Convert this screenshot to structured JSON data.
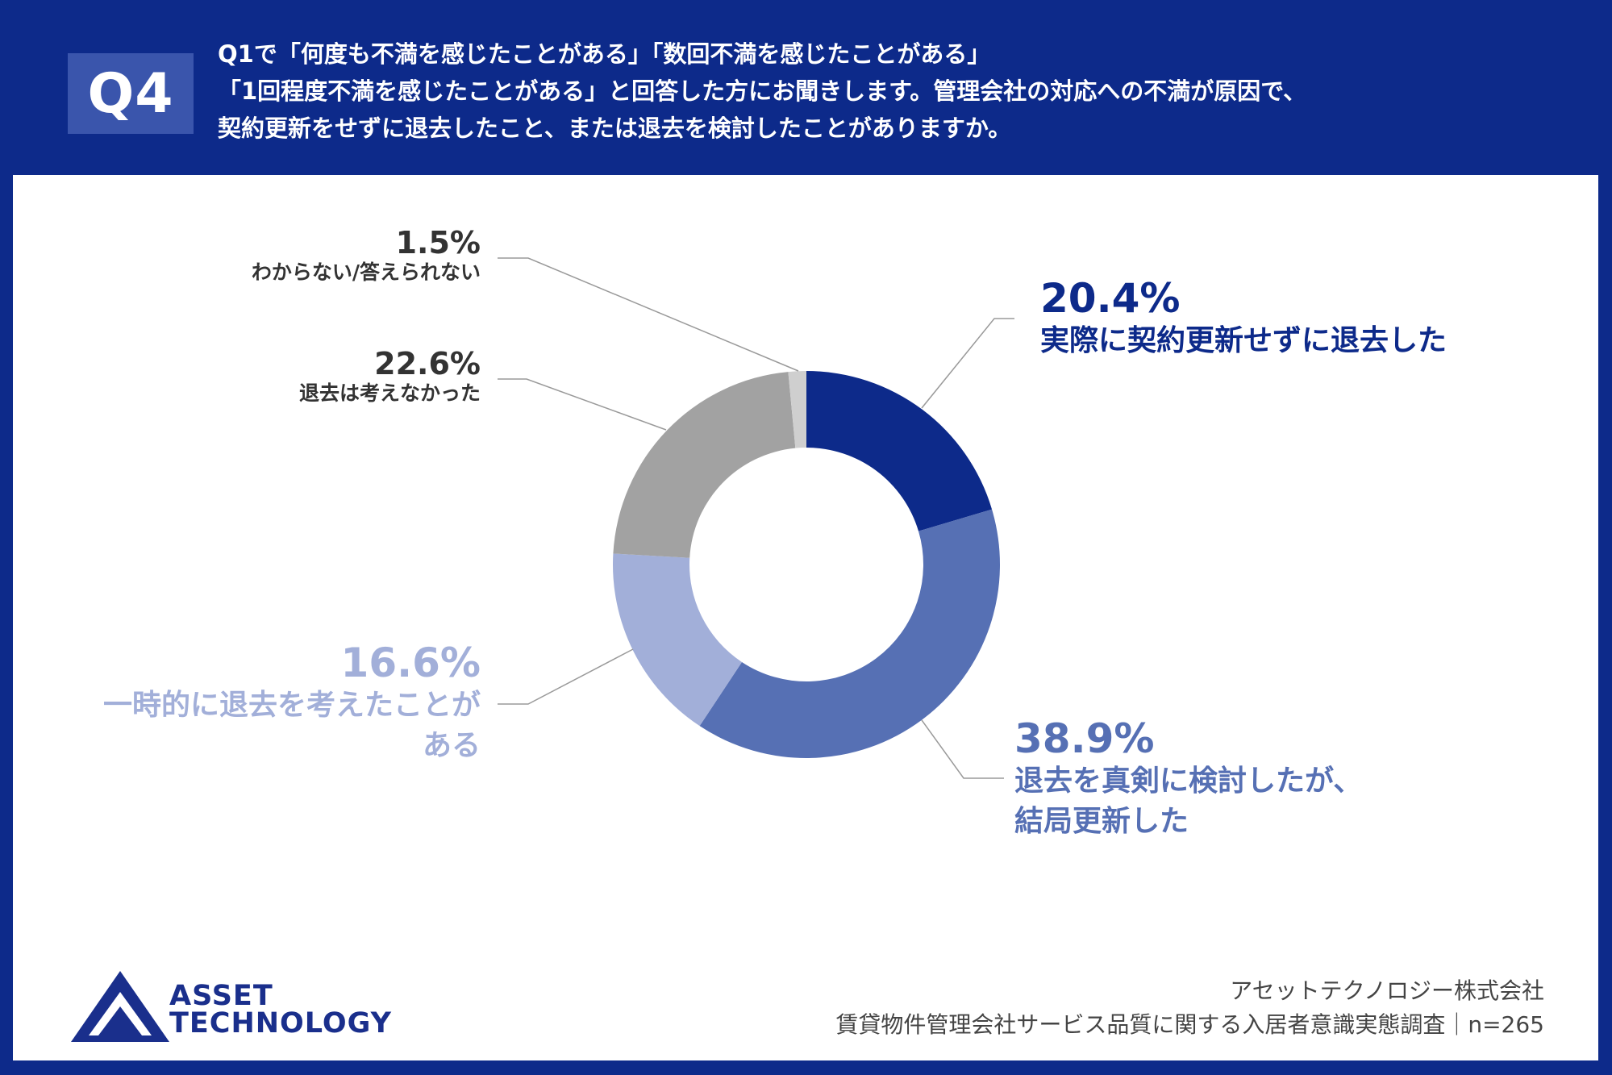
{
  "header": {
    "badge": "Q4",
    "question_lines": [
      "Q1で「何度も不満を感じたことがある」「数回不満を感じたことがある」",
      "「1回程度不満を感じたことがある」と回答した方にお聞きします。管理会社の対応への不満が原因で、",
      "契約更新をせずに退去したこと、または退去を検討したことがありますか。"
    ]
  },
  "chart_data": {
    "type": "pie",
    "title": "",
    "slices": [
      {
        "label": "実際に契約更新せずに退去した",
        "value": 20.4,
        "value_text": "20.4%",
        "color": "#0d2a8a"
      },
      {
        "label": "退去を真剣に検討したが、結局更新した",
        "value": 38.9,
        "value_text": "38.9%",
        "color": "#5670b4"
      },
      {
        "label": "一時的に退去を考えたことがある",
        "value": 16.6,
        "value_text": "16.6%",
        "color": "#a2afd9"
      },
      {
        "label": "退去は考えなかった",
        "value": 22.6,
        "value_text": "22.6%",
        "color": "#a2a2a2"
      },
      {
        "label": "わからない/答えられない",
        "value": 1.5,
        "value_text": "1.5%",
        "color": "#cfcfcf"
      }
    ]
  },
  "labels": {
    "s1": {
      "pct": "20.4%",
      "desc": "実際に契約更新せずに退去した"
    },
    "s2": {
      "pct": "38.9%",
      "desc1": "退去を真剣に検討したが、",
      "desc2": "結局更新した"
    },
    "s3": {
      "pct": "16.6%",
      "desc1": "一時的に退去を考えたことが",
      "desc2": "ある"
    },
    "s4": {
      "pct": "22.6%",
      "desc": "退去は考えなかった"
    },
    "s5": {
      "pct": "1.5%",
      "desc": "わからない/答えられない"
    }
  },
  "logo": {
    "line1": "ASSET",
    "line2": "TECHNOLOGY"
  },
  "footer": {
    "company": "アセットテクノロジー株式会社",
    "survey": "賃貸物件管理会社サービス品質に関する入居者意識実態調査｜n=265"
  },
  "colors": {
    "navy": "#0d2a8a",
    "mid": "#5670b4",
    "light": "#a2afd9",
    "gray": "#a2a2a2",
    "lightgray": "#cfcfcf",
    "dark": "#333333"
  }
}
